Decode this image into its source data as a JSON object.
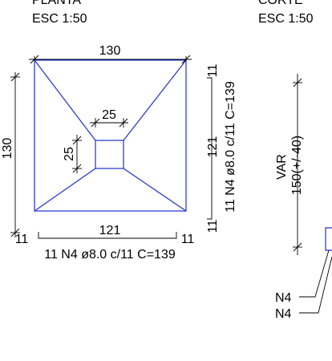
{
  "left_view": {
    "title_partial": "PLANTA",
    "scale": "ESC 1:50",
    "dim_top": "130",
    "dim_left": "130",
    "dim_inner_w": "25",
    "dim_inner_h": "25",
    "dim_right_top": "11",
    "dim_right_mid": "121",
    "dim_right_bot": "11",
    "bar_right": "11 N4 ø8.0 c/11 C=139",
    "dim_bottom_left": "11",
    "dim_bottom_mid": "121",
    "dim_bottom_right": "11",
    "bar_bottom": "11 N4 ø8.0 c/11 C=139"
  },
  "right_view": {
    "title_partial": "CORTE",
    "scale": "ESC 1:50",
    "var_label": "VAR",
    "height_label": "150(+/-40)",
    "leader_1": "N4",
    "leader_2": "N4"
  },
  "colors": {
    "outline": "#1f2fd6",
    "dims": "#000000"
  }
}
